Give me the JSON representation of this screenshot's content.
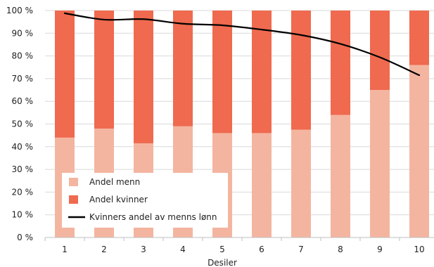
{
  "chart_data": {
    "type": "bar",
    "stacked": true,
    "categories": [
      "1",
      "2",
      "3",
      "4",
      "5",
      "6",
      "7",
      "8",
      "9",
      "10"
    ],
    "xlabel": "Desiler",
    "ylabel": "",
    "ylim": [
      0,
      100
    ],
    "ytick_values": [
      0,
      10,
      20,
      30,
      40,
      50,
      60,
      70,
      80,
      90,
      100
    ],
    "ytick_labels": [
      "0 %",
      "10 %",
      "20 %",
      "30 %",
      "40 %",
      "50 %",
      "60 %",
      "70 %",
      "80 %",
      "90 %",
      "100 %"
    ],
    "grid": "horizontal",
    "legend_position": "bottom-left",
    "series": [
      {
        "name": "Andel menn",
        "kind": "bar",
        "color": "#f4b5a0",
        "values": [
          44,
          48,
          41.5,
          49,
          46,
          46,
          47.5,
          54,
          65,
          76
        ]
      },
      {
        "name": "Andel kvinner",
        "kind": "bar",
        "color": "#ef6a4f",
        "values": [
          56,
          52,
          58.5,
          51,
          54,
          54,
          52.5,
          46,
          35,
          24
        ]
      },
      {
        "name": "Kvinners andel av menns lønn",
        "kind": "line",
        "color": "#000000",
        "values": [
          98.8,
          96.0,
          96.2,
          94.2,
          93.5,
          91.6,
          89.2,
          85.3,
          79.4,
          71.5
        ]
      }
    ]
  }
}
